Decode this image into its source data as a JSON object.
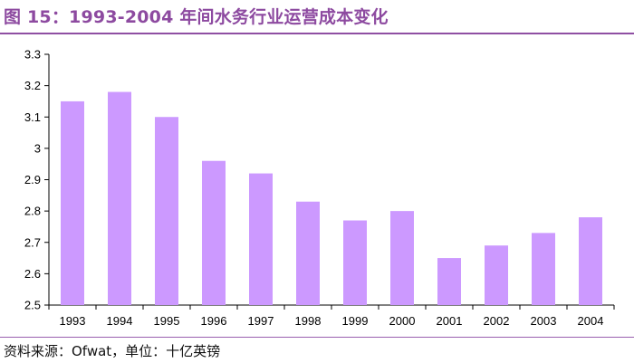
{
  "header": {
    "title": "图 15：1993-2004 年间水务行业运营成本变化"
  },
  "footer": {
    "source": "资料来源：Ofwat，单位：十亿英镑"
  },
  "colors": {
    "bar": "#cc99ff",
    "title": "#8d4aa0",
    "rule": "#8f4fa3"
  },
  "chart_data": {
    "type": "bar",
    "title": "",
    "xlabel": "",
    "ylabel": "",
    "categories": [
      "1993",
      "1994",
      "1995",
      "1996",
      "1997",
      "1998",
      "1999",
      "2000",
      "2001",
      "2002",
      "2003",
      "2004"
    ],
    "values": [
      3.15,
      3.18,
      3.1,
      2.96,
      2.92,
      2.83,
      2.77,
      2.8,
      2.65,
      2.69,
      2.73,
      2.78
    ],
    "ylim": [
      2.5,
      3.3
    ],
    "yticks": [
      "2.5",
      "2.6",
      "2.7",
      "2.8",
      "2.9",
      "3",
      "3.1",
      "3.2",
      "3.3"
    ],
    "grid": false,
    "legend": "none"
  }
}
